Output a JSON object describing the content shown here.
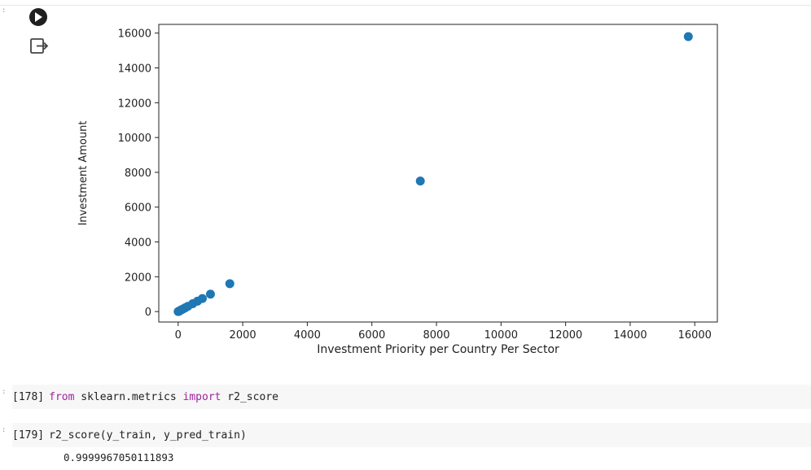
{
  "notebook": {
    "cells": [
      {
        "count": "[178]",
        "code_parts": [
          {
            "text": "from",
            "kw": true
          },
          {
            "text": " sklearn.metrics ",
            "kw": false
          },
          {
            "text": "import",
            "kw": true
          },
          {
            "text": " r2_score",
            "kw": false
          }
        ]
      },
      {
        "count": "[179]",
        "code_parts": [
          {
            "text": "r2_score(y_train, y_pred_train)",
            "kw": false
          }
        ]
      }
    ],
    "result": "0.9999967050111893",
    "icons": {
      "run": "play-circle-icon",
      "output": "output-exit-icon"
    }
  },
  "chart_data": {
    "type": "scatter",
    "xlabel": "Investment Priority per Country Per Sector",
    "ylabel": "Investment Amount",
    "xlim": [
      -600,
      16700
    ],
    "ylim": [
      -600,
      16500
    ],
    "xticks": [
      0,
      2000,
      4000,
      6000,
      8000,
      10000,
      12000,
      14000,
      16000
    ],
    "yticks": [
      0,
      2000,
      4000,
      6000,
      8000,
      10000,
      12000,
      14000,
      16000
    ],
    "grid": false,
    "point_color": "#1f77b4",
    "points": [
      {
        "x": 0,
        "y": 0
      },
      {
        "x": 30,
        "y": 20
      },
      {
        "x": 60,
        "y": 60
      },
      {
        "x": 100,
        "y": 100
      },
      {
        "x": 150,
        "y": 150
      },
      {
        "x": 220,
        "y": 220
      },
      {
        "x": 300,
        "y": 300
      },
      {
        "x": 450,
        "y": 450
      },
      {
        "x": 600,
        "y": 600
      },
      {
        "x": 750,
        "y": 750
      },
      {
        "x": 1000,
        "y": 1000
      },
      {
        "x": 1600,
        "y": 1600
      },
      {
        "x": 7500,
        "y": 7500
      },
      {
        "x": 15800,
        "y": 15800
      }
    ]
  }
}
